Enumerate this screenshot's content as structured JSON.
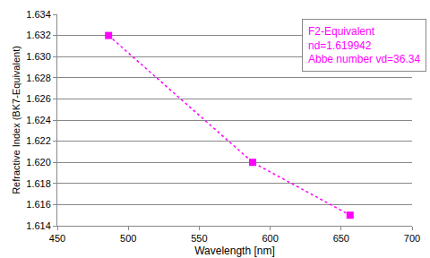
{
  "chart_data": {
    "type": "line",
    "x_label": "Wavelength [nm]",
    "y_label": "Refractive Index (BK7-Equivalent)",
    "annotation": [
      "F2-Equivalent",
      "nd=1.619942",
      "Abbe number vd=36.34"
    ],
    "x": [
      486.1,
      587.6,
      656.3
    ],
    "values": [
      1.632,
      1.62,
      1.615
    ],
    "color": "#ff00ff",
    "marker": "square",
    "line_style": "dot",
    "xlim": [
      450,
      700
    ],
    "xticks": [
      450,
      500,
      550,
      600,
      650,
      700
    ],
    "ylim": [
      1.614,
      1.634
    ],
    "yticks": [
      1.614,
      1.616,
      1.618,
      {
        "value": 1.62,
        "label": "1.620"
      },
      1.622,
      1.624,
      1.626,
      1.628,
      {
        "value": 1.63,
        "label": "1.630"
      },
      1.632,
      1.634
    ],
    "grid": "y"
  }
}
